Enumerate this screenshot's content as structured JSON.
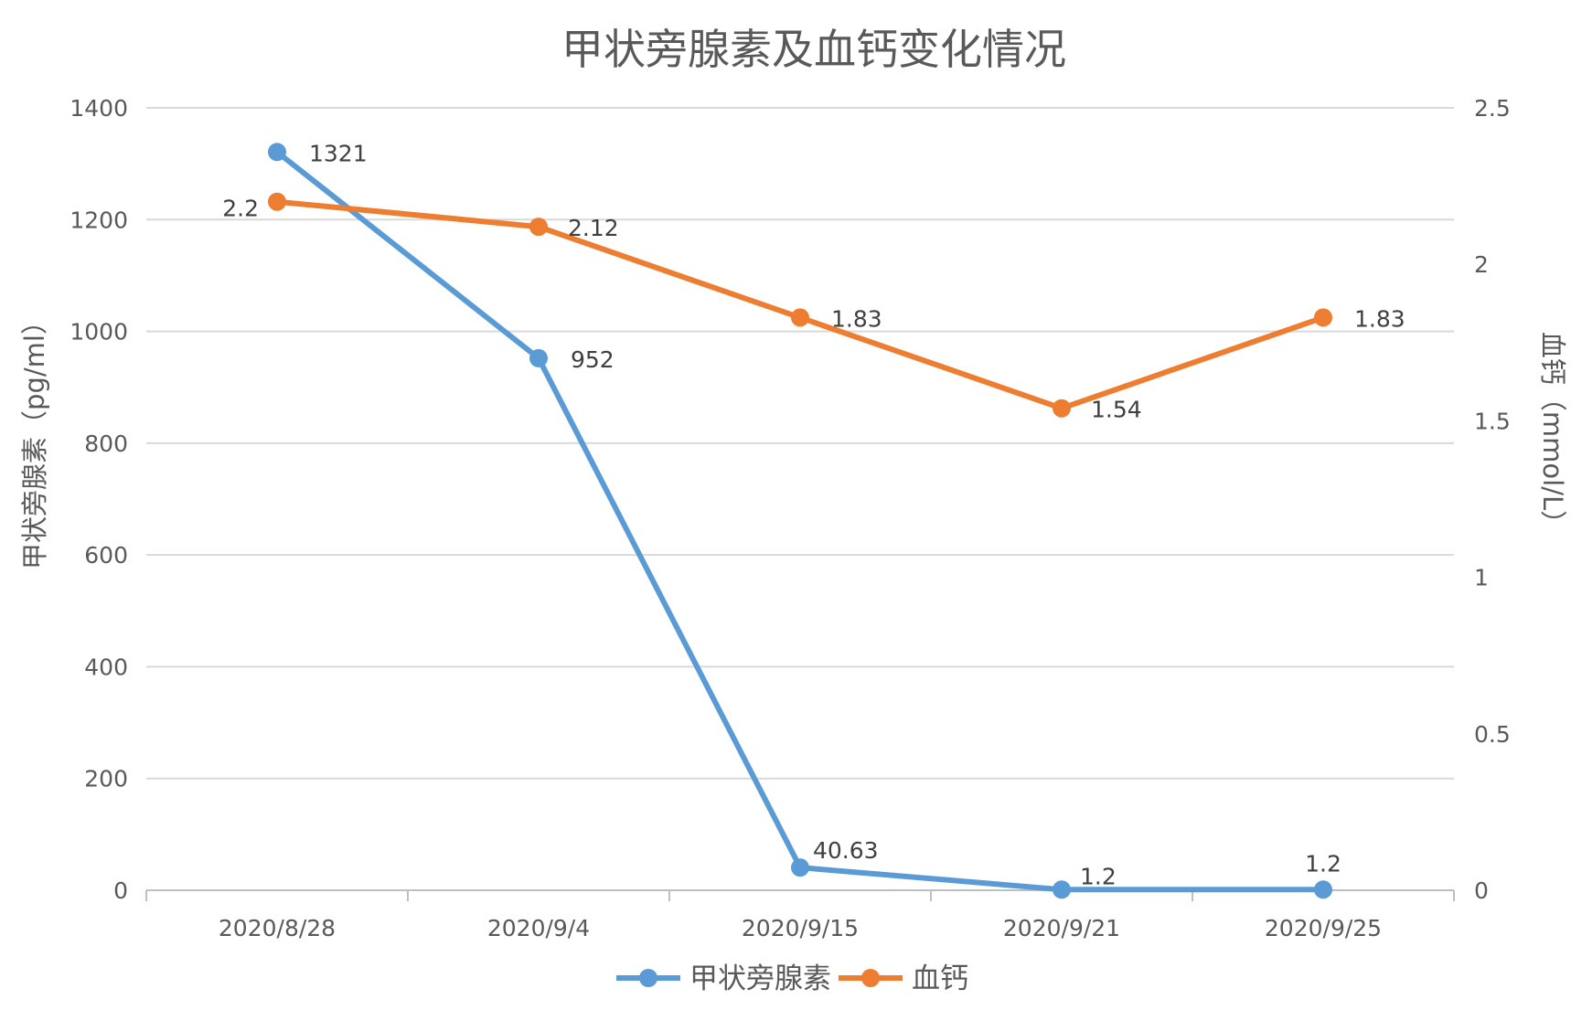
{
  "chart_data": {
    "type": "line",
    "title": "甲状旁腺素及血钙变化情况",
    "categories": [
      "2020/8/28",
      "2020/9/4",
      "2020/9/15",
      "2020/9/21",
      "2020/9/25"
    ],
    "y_left": {
      "label": "甲状旁腺素（pg/ml）",
      "range": [
        0,
        1400
      ],
      "ticks": [
        "0",
        "200",
        "400",
        "600",
        "800",
        "1000",
        "1200",
        "1400"
      ]
    },
    "y_right": {
      "label": "血钙（mmol/L）",
      "range": [
        0,
        2.5
      ],
      "ticks": [
        "0",
        "0.5",
        "1",
        "1.5",
        "2",
        "2.5"
      ]
    },
    "series": [
      {
        "name": "甲状旁腺素",
        "axis": "left",
        "color": "#5b9bd5",
        "values": [
          1321,
          952,
          40.63,
          1.2,
          1.2
        ],
        "labels": [
          "1321",
          "952",
          "40.63",
          "1.2",
          "1.2"
        ]
      },
      {
        "name": "血钙",
        "axis": "right",
        "color": "#ed7d31",
        "values": [
          2.2,
          2.12,
          1.83,
          1.54,
          1.83
        ],
        "labels": [
          "2.2",
          "2.12",
          "1.83",
          "1.54",
          "1.83"
        ]
      }
    ],
    "grid": true,
    "legend_position": "bottom"
  }
}
